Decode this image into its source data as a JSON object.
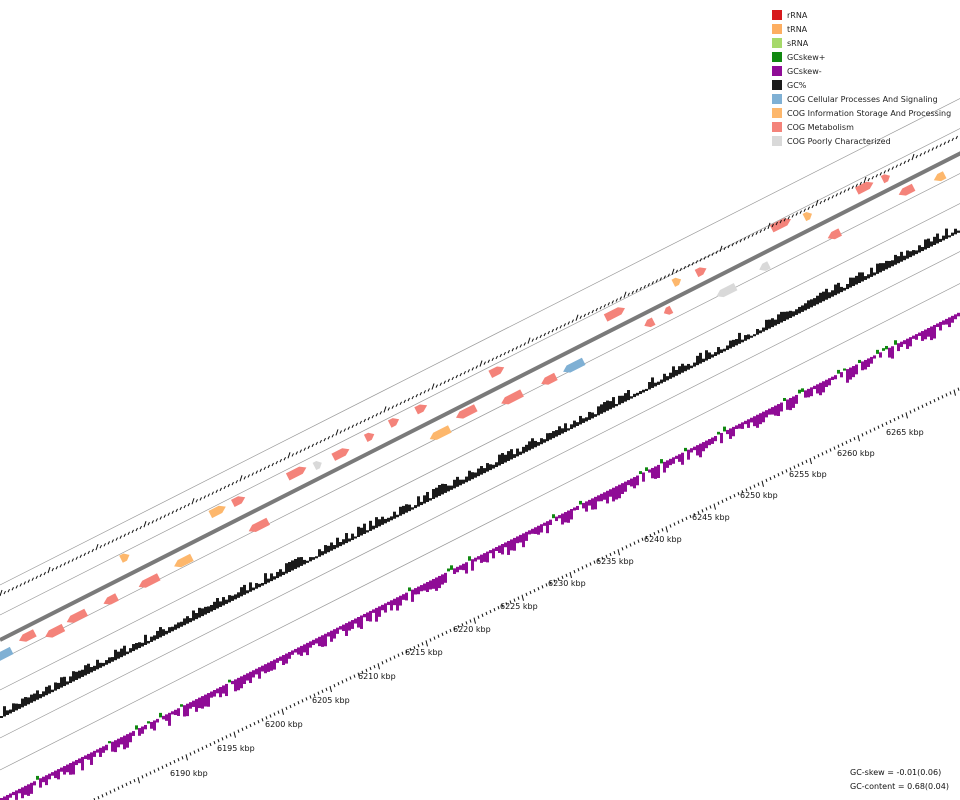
{
  "legend": [
    {
      "label": "rRNA",
      "color": "#d7191c"
    },
    {
      "label": "tRNA",
      "color": "#fdae61"
    },
    {
      "label": "sRNA",
      "color": "#a6d96a"
    },
    {
      "label": "GCskew+",
      "color": "#118811"
    },
    {
      "label": "GCskew-",
      "color": "#8f0c96"
    },
    {
      "label": "GC%",
      "color": "#1a1a1a"
    },
    {
      "label": "COG Cellular Processes And Signaling",
      "color": "#7fb0d4"
    },
    {
      "label": "COG Information Storage And Processing",
      "color": "#fdb76c"
    },
    {
      "label": "COG Metabolism",
      "color": "#f4837a"
    },
    {
      "label": "COG Poorly Characterized",
      "color": "#d9d9d9"
    }
  ],
  "stats": {
    "gc_skew": "GC-skew = -0.01(0.06)",
    "gc_content": "GC-content = 0.68(0.04)"
  },
  "kbp_labels": [
    "6190 kbp",
    "6195 kbp",
    "6200 kbp",
    "6205 kbp",
    "6210 kbp",
    "6215 kbp",
    "6220 kbp",
    "6225 kbp",
    "6230 kbp",
    "6235 kbp",
    "6240 kbp",
    "6245 kbp",
    "6250 kbp",
    "6255 kbp",
    "6260 kbp",
    "6265 kbp"
  ],
  "colors": {
    "backbone": "#7a7a7a",
    "gc": "#1a1a1a",
    "skew_pos": "#118811",
    "skew_neg": "#8f0c96",
    "ring": "#9a9a9a",
    "tick": "#111111"
  },
  "gene_colors": [
    "#f4837a",
    "#fdb76c",
    "#7fb0d4",
    "#d9d9d9",
    "#bbbbbb"
  ]
}
